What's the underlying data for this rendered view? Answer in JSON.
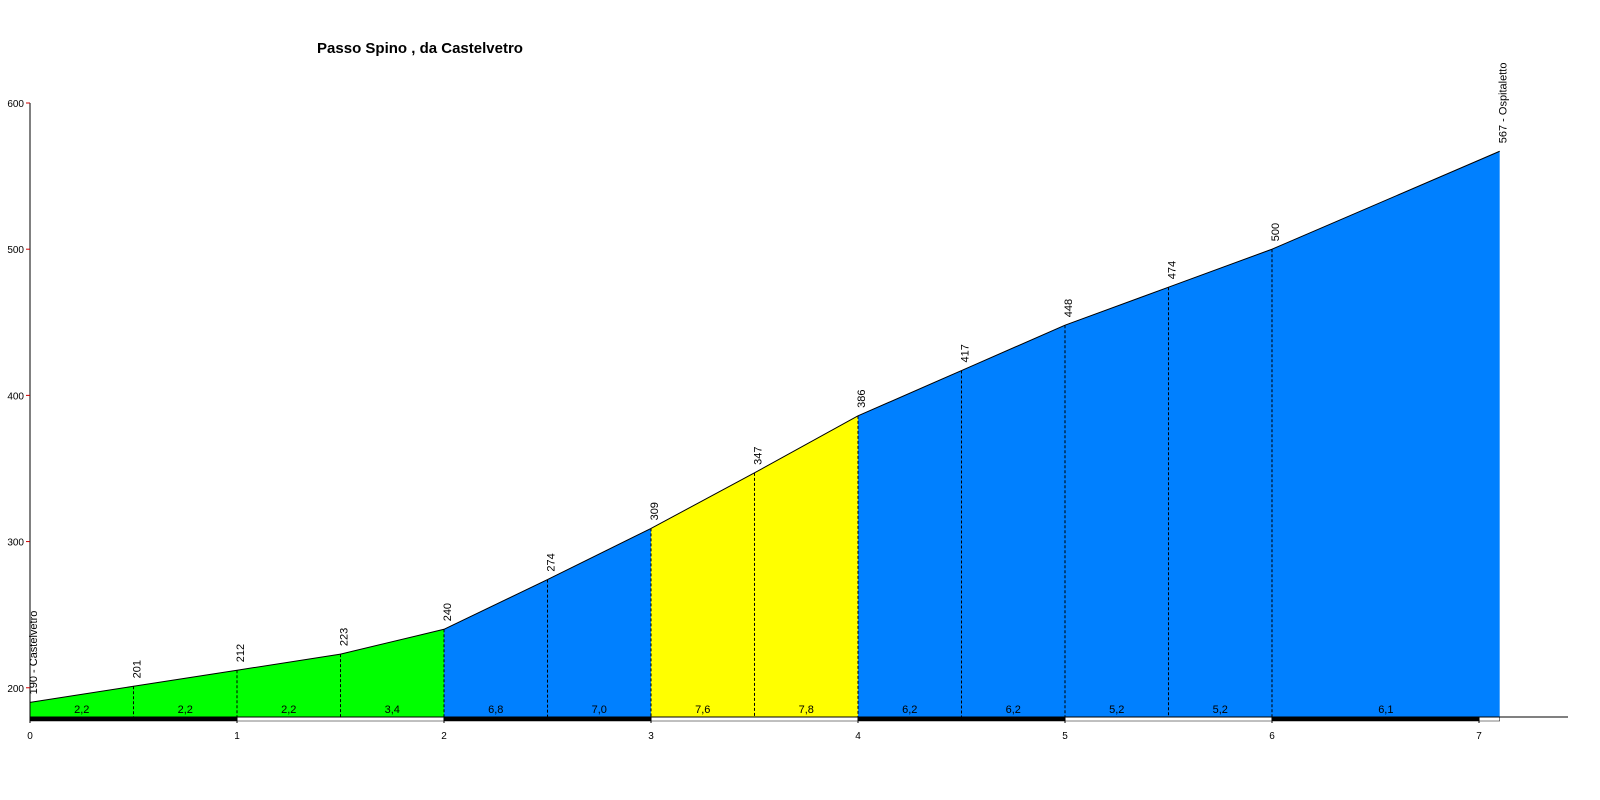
{
  "chart_data": {
    "type": "area",
    "title": "Passo Spino , da Castelvetro",
    "x": [
      0,
      0.5,
      1,
      1.5,
      2,
      2.5,
      3,
      3.5,
      4,
      4.5,
      5,
      5.5,
      6,
      7.1
    ],
    "values": [
      190,
      201,
      212,
      223,
      240,
      274,
      309,
      347,
      386,
      417,
      448,
      474,
      500,
      567
    ],
    "value_labels": [
      "190 - Castelvetro",
      "201",
      "212",
      "223",
      "240",
      "274",
      "309",
      "347",
      "386",
      "417",
      "448",
      "474",
      "500",
      "567 - Ospitaletto"
    ],
    "gradients": [
      2.2,
      2.2,
      2.2,
      3.4,
      6.8,
      7.0,
      7.6,
      7.8,
      6.2,
      6.2,
      5.2,
      5.2,
      6.1
    ],
    "gradient_labels": [
      "2,2",
      "2,2",
      "2,2",
      "3,4",
      "6,8",
      "7,0",
      "7,6",
      "7,8",
      "6,2",
      "6,2",
      "5,2",
      "5,2",
      "6,1"
    ],
    "segment_colors": [
      "#00ff00",
      "#00ff00",
      "#00ff00",
      "#00ff00",
      "#0080ff",
      "#0080ff",
      "#ffff00",
      "#ffff00",
      "#0080ff",
      "#0080ff",
      "#0080ff",
      "#0080ff",
      "#0080ff"
    ],
    "xlim": [
      0,
      7.43
    ],
    "ylim": [
      180,
      600
    ],
    "xticks": [
      0,
      1,
      2,
      3,
      4,
      5,
      6,
      7
    ],
    "yticks": [
      200,
      300,
      400,
      500,
      600
    ]
  }
}
